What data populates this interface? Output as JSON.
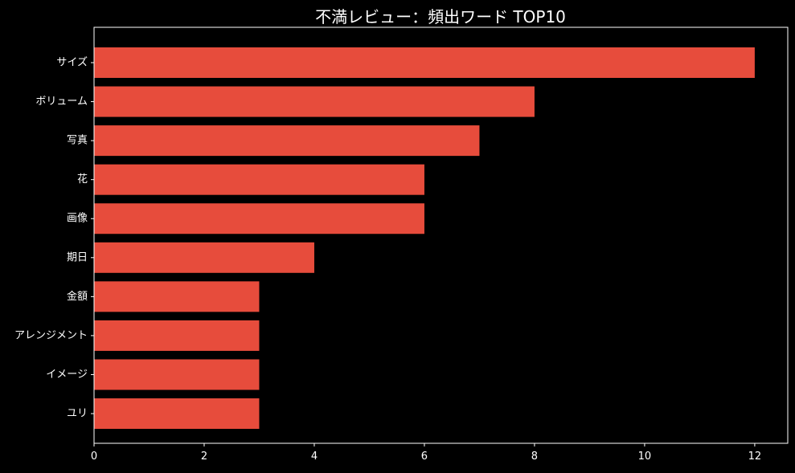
{
  "chart_data": {
    "type": "bar",
    "orientation": "horizontal",
    "title": "不満レビュー：頻出ワード TOP10",
    "xlabel": "",
    "ylabel": "",
    "categories": [
      "サイズ",
      "ボリューム",
      "写真",
      "花",
      "画像",
      "期日",
      "金額",
      "アレンジメント",
      "イメージ",
      "ユリ"
    ],
    "values": [
      12,
      8,
      7,
      6,
      6,
      4,
      3,
      3,
      3,
      3
    ],
    "xlim": [
      0,
      12.6
    ],
    "xticks": [
      0,
      2,
      4,
      6,
      8,
      10,
      12
    ],
    "grid": false,
    "bar_color": "#e74c3c",
    "background": "#000000",
    "text_color": "#ffffff"
  }
}
